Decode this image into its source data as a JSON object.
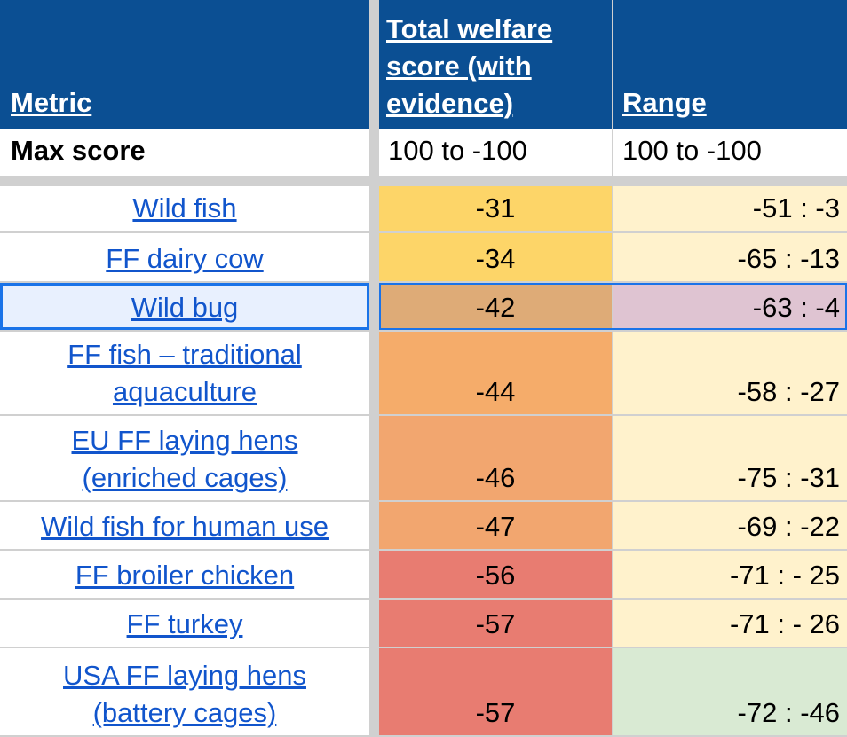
{
  "header": {
    "metric": "Metric",
    "total_score_lines": [
      "Total welfare",
      "score (with",
      "evidence)"
    ],
    "range": "Range"
  },
  "max_row": {
    "label": "Max score",
    "total": "100 to -100",
    "range": "100 to -100"
  },
  "rows": [
    {
      "metric_lines": [
        "Wild fish"
      ],
      "score": "-31",
      "range": "-51 : -3",
      "score_color": "#fdd568",
      "range_color": "#fff2cc"
    },
    {
      "metric_lines": [
        "FF dairy cow"
      ],
      "score": "-34",
      "range": "-65 : -13",
      "score_color": "#fdd568",
      "range_color": "#fff2cc"
    },
    {
      "metric_lines": [
        "Wild bug"
      ],
      "score": "-42",
      "range": "-63 : -4",
      "score_color": "#deab77",
      "range_color": "#dfc4d2",
      "selected": true
    },
    {
      "metric_lines": [
        "FF fish – traditional",
        "aquaculture"
      ],
      "score": "-44",
      "range": "-58 : -27",
      "score_color": "#f5ac6a",
      "range_color": "#fff2cc"
    },
    {
      "metric_lines": [
        "EU FF laying hens",
        "(enriched cages)"
      ],
      "score": "-46",
      "range": "-75 : -31",
      "score_color": "#f2a66f",
      "range_color": "#fff2cc"
    },
    {
      "metric_lines": [
        "Wild fish for human use"
      ],
      "score": "-47",
      "range": "-69 : -22",
      "score_color": "#f2a66f",
      "range_color": "#fff2cc"
    },
    {
      "metric_lines": [
        "FF broiler chicken"
      ],
      "score": "-56",
      "range": "-71 : - 25",
      "score_color": "#e87c71",
      "range_color": "#fff2cc"
    },
    {
      "metric_lines": [
        "FF turkey"
      ],
      "score": "-57",
      "range": "-71 : - 26",
      "score_color": "#e87c71",
      "range_color": "#fff2cc"
    },
    {
      "metric_lines": [
        "USA FF laying hens",
        "(battery cages)"
      ],
      "score": "-57",
      "range": "-72 : -46",
      "score_color": "#e87c71",
      "range_color": "#d9ead3"
    }
  ]
}
